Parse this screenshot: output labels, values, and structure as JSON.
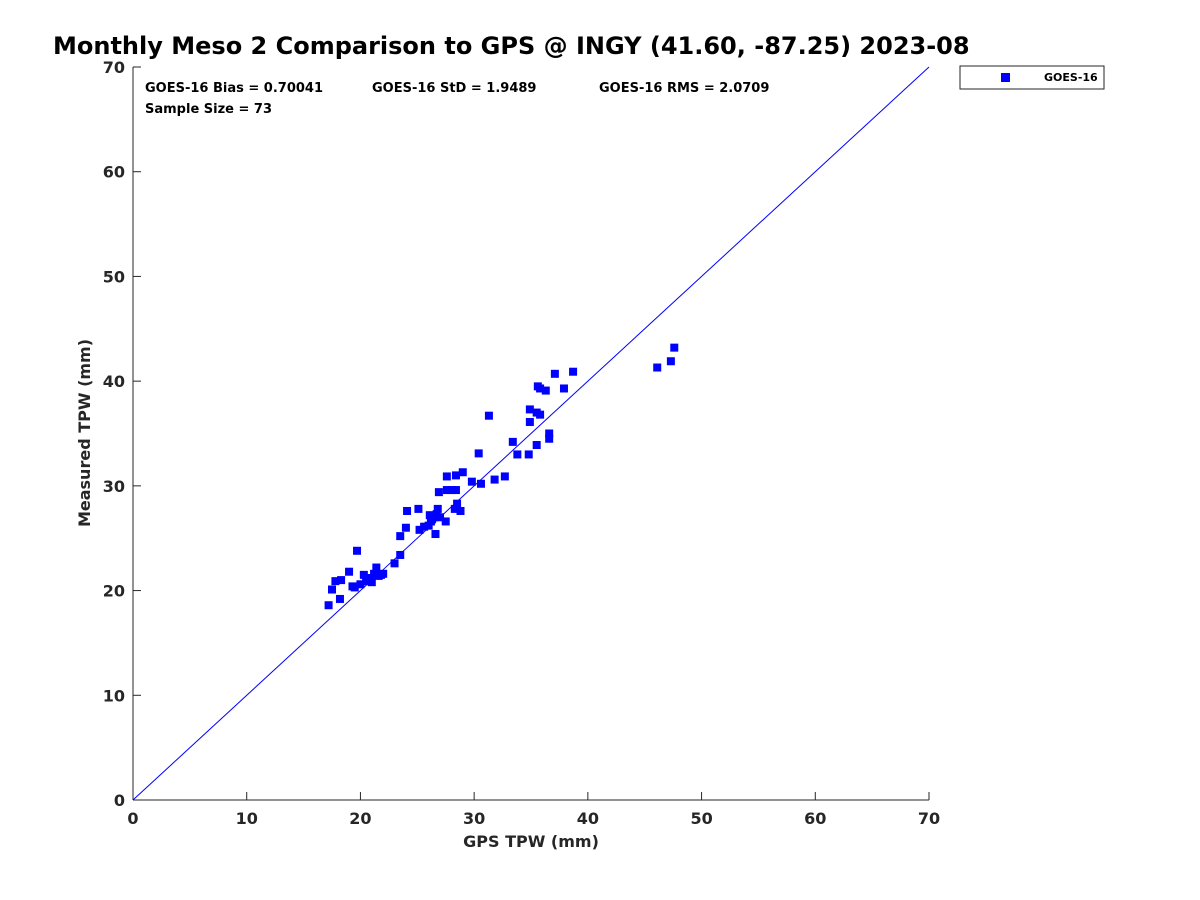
{
  "chart_data": {
    "type": "scatter",
    "title": "Monthly Meso 2 Comparison to GPS @ INGY (41.60, -87.25) 2023-08",
    "xlabel": "GPS TPW (mm)",
    "ylabel": "Measured TPW (mm)",
    "xlim": [
      0,
      70
    ],
    "ylim": [
      0,
      70
    ],
    "xticks": [
      "0",
      "10",
      "20",
      "30",
      "40",
      "50",
      "60",
      "70"
    ],
    "yticks": [
      "0",
      "10",
      "20",
      "30",
      "40",
      "50",
      "60",
      "70"
    ],
    "grid": false,
    "legend_position": "top-right-outside",
    "colors": {
      "marker": "#0000ff",
      "reference_line": "#0000ff"
    },
    "reference_line": {
      "from": [
        0,
        0
      ],
      "to": [
        70,
        70
      ]
    },
    "annotations": [
      "GOES-16 Bias = 0.70041",
      "GOES-16 StD = 1.9489",
      "GOES-16 RMS = 2.0709",
      "Sample Size = 73"
    ],
    "series": [
      {
        "name": "GOES-16",
        "marker": "square",
        "points": [
          [
            17.2,
            18.6
          ],
          [
            17.5,
            20.1
          ],
          [
            17.8,
            20.9
          ],
          [
            18.2,
            19.2
          ],
          [
            18.3,
            21.0
          ],
          [
            19.0,
            21.8
          ],
          [
            19.3,
            20.4
          ],
          [
            19.5,
            20.3
          ],
          [
            19.7,
            23.8
          ],
          [
            20.0,
            20.6
          ],
          [
            20.3,
            21.5
          ],
          [
            20.5,
            20.9
          ],
          [
            20.8,
            21.1
          ],
          [
            21.0,
            20.8
          ],
          [
            21.2,
            21.6
          ],
          [
            21.4,
            22.2
          ],
          [
            21.6,
            21.4
          ],
          [
            21.8,
            21.5
          ],
          [
            23.0,
            22.6
          ],
          [
            23.5,
            23.4
          ],
          [
            23.5,
            25.2
          ],
          [
            24.0,
            26.0
          ],
          [
            24.1,
            27.6
          ],
          [
            25.1,
            27.8
          ],
          [
            25.2,
            25.8
          ],
          [
            25.6,
            26.1
          ],
          [
            26.0,
            26.2
          ],
          [
            26.1,
            27.2
          ],
          [
            26.3,
            26.8
          ],
          [
            26.5,
            27.0
          ],
          [
            26.6,
            25.4
          ],
          [
            26.7,
            27.3
          ],
          [
            26.8,
            27.8
          ],
          [
            27.0,
            27.0
          ],
          [
            26.9,
            29.4
          ],
          [
            27.5,
            26.6
          ],
          [
            27.6,
            29.6
          ],
          [
            27.6,
            30.9
          ],
          [
            28.0,
            29.6
          ],
          [
            28.4,
            29.6
          ],
          [
            28.3,
            27.8
          ],
          [
            28.4,
            31.0
          ],
          [
            28.5,
            28.3
          ],
          [
            28.8,
            27.6
          ],
          [
            29.0,
            31.3
          ],
          [
            29.8,
            30.4
          ],
          [
            30.4,
            33.1
          ],
          [
            30.6,
            30.2
          ],
          [
            31.3,
            36.7
          ],
          [
            31.8,
            30.6
          ],
          [
            32.7,
            30.9
          ],
          [
            33.4,
            34.2
          ],
          [
            33.8,
            33.0
          ],
          [
            34.8,
            33.0
          ],
          [
            34.9,
            36.1
          ],
          [
            34.9,
            37.3
          ],
          [
            35.5,
            33.9
          ],
          [
            35.5,
            37.0
          ],
          [
            35.6,
            39.5
          ],
          [
            35.8,
            39.3
          ],
          [
            35.8,
            36.8
          ],
          [
            36.3,
            39.1
          ],
          [
            36.6,
            34.5
          ],
          [
            36.6,
            35.0
          ],
          [
            37.1,
            40.7
          ],
          [
            37.9,
            39.3
          ],
          [
            38.7,
            40.9
          ],
          [
            46.1,
            41.3
          ],
          [
            47.3,
            41.9
          ],
          [
            47.6,
            43.2
          ],
          [
            22.0,
            21.6
          ],
          [
            20.6,
            21.2
          ],
          [
            26.2,
            26.6
          ]
        ]
      }
    ]
  }
}
